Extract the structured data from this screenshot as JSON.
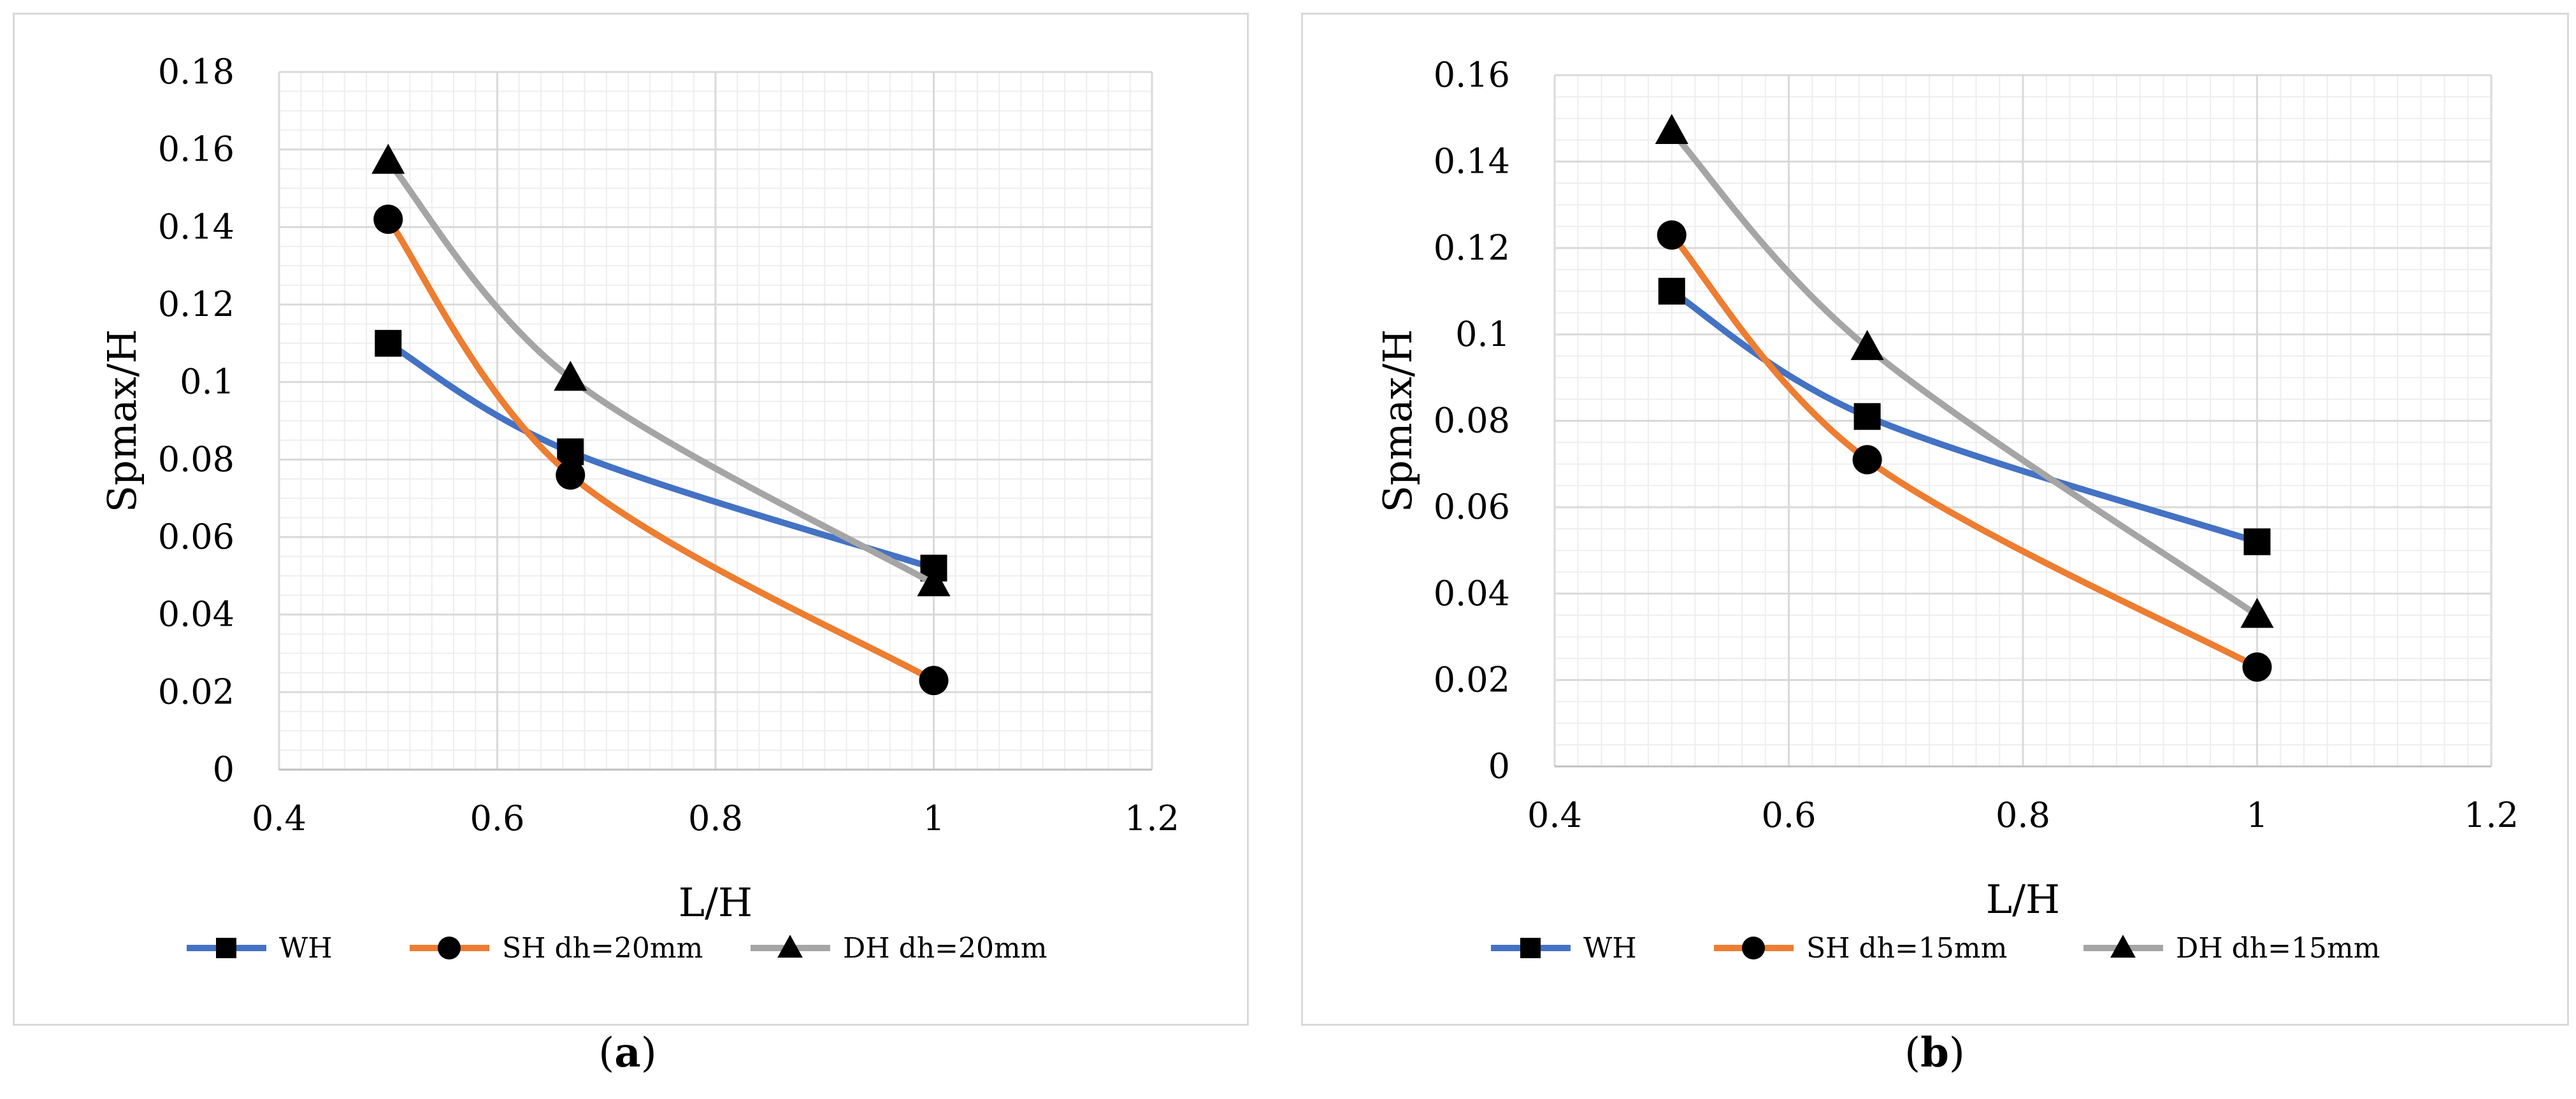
{
  "colors": {
    "wh": "#4472c4",
    "sh": "#ed7d31",
    "dh": "#a5a5a5",
    "grid_major": "#d9d9d9",
    "grid_minor": "#eeeeee",
    "marker": "#000000"
  },
  "chart_data": [
    {
      "type": "line",
      "panel_label": "a",
      "title": "",
      "xlabel": "L/H",
      "ylabel": "Spmax/H",
      "xlim": [
        0.4,
        1.2
      ],
      "ylim": [
        0,
        0.18
      ],
      "x_ticks": [
        "0.4",
        "0.6",
        "0.8",
        "1",
        "1.2"
      ],
      "y_ticks": [
        "0",
        "0.02",
        "0.04",
        "0.06",
        "0.08",
        "0.1",
        "0.12",
        "0.14",
        "0.16",
        "0.18"
      ],
      "legend_position": "bottom",
      "series": [
        {
          "name": "WH",
          "marker": "square",
          "x": [
            0.5,
            0.667,
            1.0
          ],
          "values": [
            0.11,
            0.082,
            0.052
          ]
        },
        {
          "name": "SH dh=20mm",
          "marker": "circle",
          "x": [
            0.5,
            0.667,
            1.0
          ],
          "values": [
            0.142,
            0.076,
            0.023
          ]
        },
        {
          "name": "DH dh=20mm",
          "marker": "triangle",
          "x": [
            0.5,
            0.667,
            1.0
          ],
          "values": [
            0.157,
            0.101,
            0.048
          ]
        }
      ]
    },
    {
      "type": "line",
      "panel_label": "b",
      "title": "",
      "xlabel": "L/H",
      "ylabel": "Spmax/H",
      "xlim": [
        0.4,
        1.2
      ],
      "ylim": [
        0,
        0.16
      ],
      "x_ticks": [
        "0.4",
        "0.6",
        "0.8",
        "1",
        "1.2"
      ],
      "y_ticks": [
        "0",
        "0.02",
        "0.04",
        "0.06",
        "0.08",
        "0.1",
        "0.12",
        "0.14",
        "0.16"
      ],
      "legend_position": "bottom",
      "series": [
        {
          "name": "WH",
          "marker": "square",
          "x": [
            0.5,
            0.667,
            1.0
          ],
          "values": [
            0.11,
            0.081,
            0.052
          ]
        },
        {
          "name": "SH dh=15mm",
          "marker": "circle",
          "x": [
            0.5,
            0.667,
            1.0
          ],
          "values": [
            0.123,
            0.071,
            0.023
          ]
        },
        {
          "name": "DH dh=15mm",
          "marker": "triangle",
          "x": [
            0.5,
            0.667,
            1.0
          ],
          "values": [
            0.147,
            0.097,
            0.035
          ]
        }
      ]
    }
  ]
}
